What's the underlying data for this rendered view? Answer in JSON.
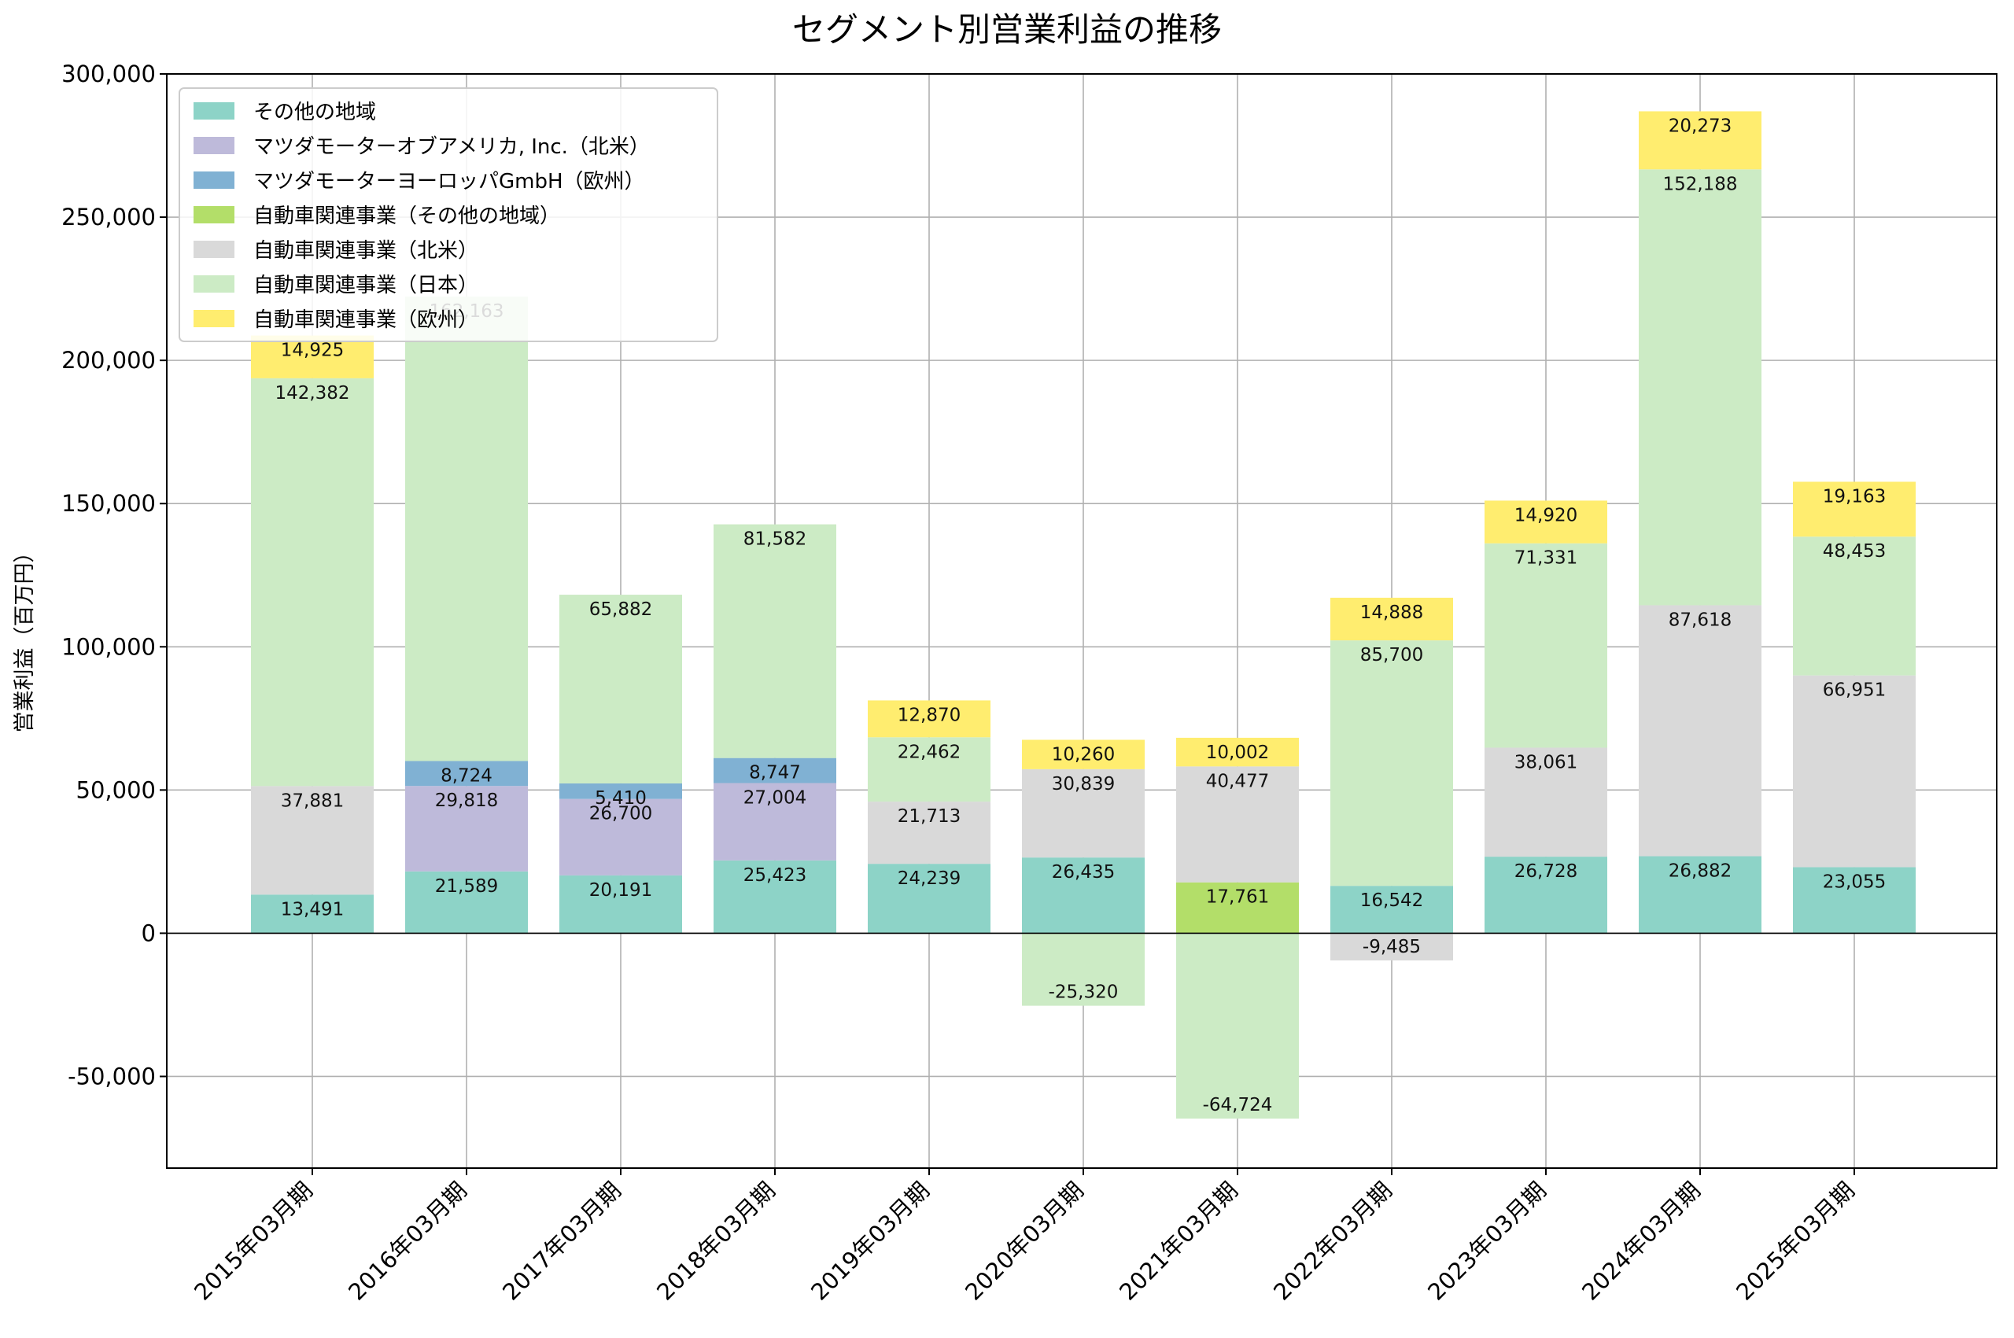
{
  "chart_data": {
    "type": "bar",
    "stacked": true,
    "title": "セグメント別営業利益の推移",
    "xlabel": "",
    "ylabel": "営業利益（百万円）",
    "ylim": [
      -82000,
      300000
    ],
    "yticks": [
      -50000,
      0,
      50000,
      100000,
      150000,
      200000,
      250000,
      300000
    ],
    "ytick_labels": [
      "-50,000",
      "0",
      "50,000",
      "100,000",
      "150,000",
      "200,000",
      "250,000",
      "300,000"
    ],
    "grid": true,
    "legend_position": "top-left",
    "categories": [
      "2015年03月期",
      "2016年03月期",
      "2017年03月期",
      "2018年03月期",
      "2019年03月期",
      "2020年03月期",
      "2021年03月期",
      "2022年03月期",
      "2023年03月期",
      "2024年03月期",
      "2025年03月期"
    ],
    "series": [
      {
        "name": "その他の地域",
        "color": "#8dd3c7",
        "values": [
          13491,
          21589,
          20191,
          25423,
          24239,
          26435,
          null,
          16542,
          26728,
          26882,
          23055
        ]
      },
      {
        "name": "マツダモーターオブアメリカ, Inc.（北米）",
        "color": "#bebada",
        "values": [
          null,
          29818,
          26700,
          27004,
          null,
          null,
          null,
          null,
          null,
          null,
          null
        ]
      },
      {
        "name": "マツダモーターヨーロッパGmbH（欧州）",
        "color": "#80b1d3",
        "values": [
          null,
          8724,
          5410,
          8747,
          null,
          null,
          null,
          null,
          null,
          null,
          null
        ]
      },
      {
        "name": "自動車関連事業（その他の地域）",
        "color": "#b3de69",
        "values": [
          null,
          null,
          null,
          null,
          null,
          null,
          17761,
          null,
          null,
          null,
          null
        ]
      },
      {
        "name": "自動車関連事業（北米）",
        "color": "#d9d9d9",
        "values": [
          37881,
          null,
          null,
          null,
          21713,
          30839,
          40477,
          -9485,
          38061,
          87618,
          66951
        ]
      },
      {
        "name": "自動車関連事業（日本）",
        "color": "#ccebc5",
        "values": [
          142382,
          162163,
          65882,
          81582,
          22462,
          -25320,
          -64724,
          85700,
          71331,
          152188,
          48453
        ]
      },
      {
        "name": "自動車関連事業（欧州）",
        "color": "#ffed6f",
        "values": [
          14925,
          null,
          null,
          null,
          12870,
          10260,
          10002,
          14888,
          14920,
          20273,
          19163
        ]
      }
    ]
  }
}
